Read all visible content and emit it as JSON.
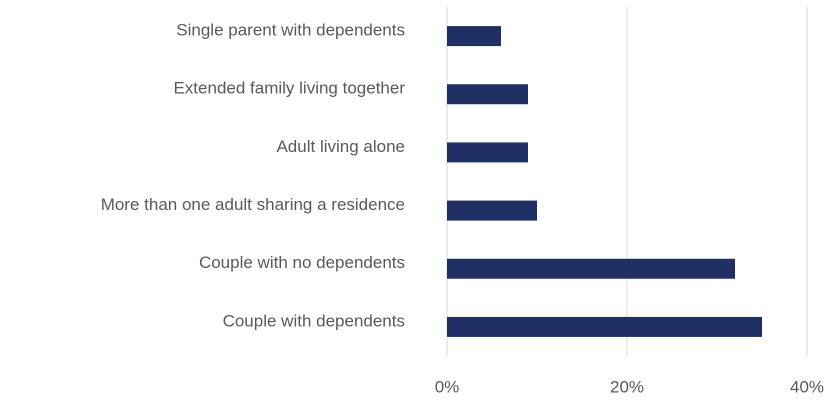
{
  "chart_data": {
    "type": "bar",
    "orientation": "horizontal",
    "categories": [
      "Single parent with dependents",
      "Extended family living together",
      "Adult living alone",
      "More than one adult sharing a residence",
      "Couple with no dependents",
      "Couple with dependents"
    ],
    "values": [
      6,
      9,
      9,
      10,
      32,
      35
    ],
    "color": "#203064",
    "xlim": [
      0,
      40
    ],
    "xticks": [
      {
        "value": 0,
        "label": "0%"
      },
      {
        "value": 20,
        "label": "20%"
      },
      {
        "value": 40,
        "label": "40%"
      }
    ],
    "grid": true
  }
}
